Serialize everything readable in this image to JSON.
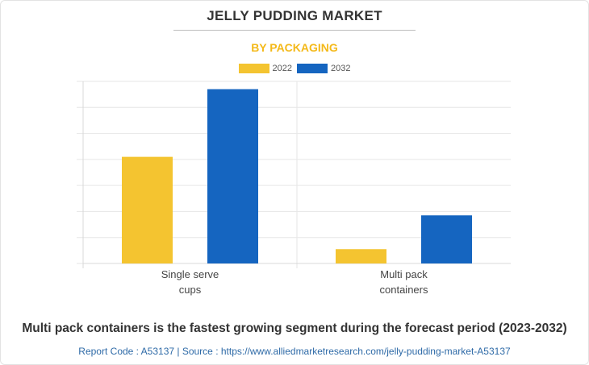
{
  "title": "JELLY PUDDING MARKET",
  "subtitle": "BY PACKAGING",
  "legend": [
    {
      "label": "2022",
      "color": "#f4c430"
    },
    {
      "label": "2032",
      "color": "#1565c0"
    }
  ],
  "chart_data": {
    "type": "bar",
    "categories": [
      [
        "Single serve",
        "cups"
      ],
      [
        "Multi pack",
        "containers"
      ]
    ],
    "series": [
      {
        "name": "2022",
        "color": "#f4c430",
        "values": [
          4.1,
          0.55
        ]
      },
      {
        "name": "2032",
        "color": "#1565c0",
        "values": [
          6.7,
          1.85
        ]
      }
    ],
    "ylim": [
      0,
      7
    ],
    "grid": true,
    "legend_position": "top-center"
  },
  "caption": "Multi pack containers is the fastest growing segment during the forecast period (2023-2032)",
  "source": "Report Code : A53137  |  Source : https://www.alliedmarketresearch.com/jelly-pudding-market-A53137"
}
